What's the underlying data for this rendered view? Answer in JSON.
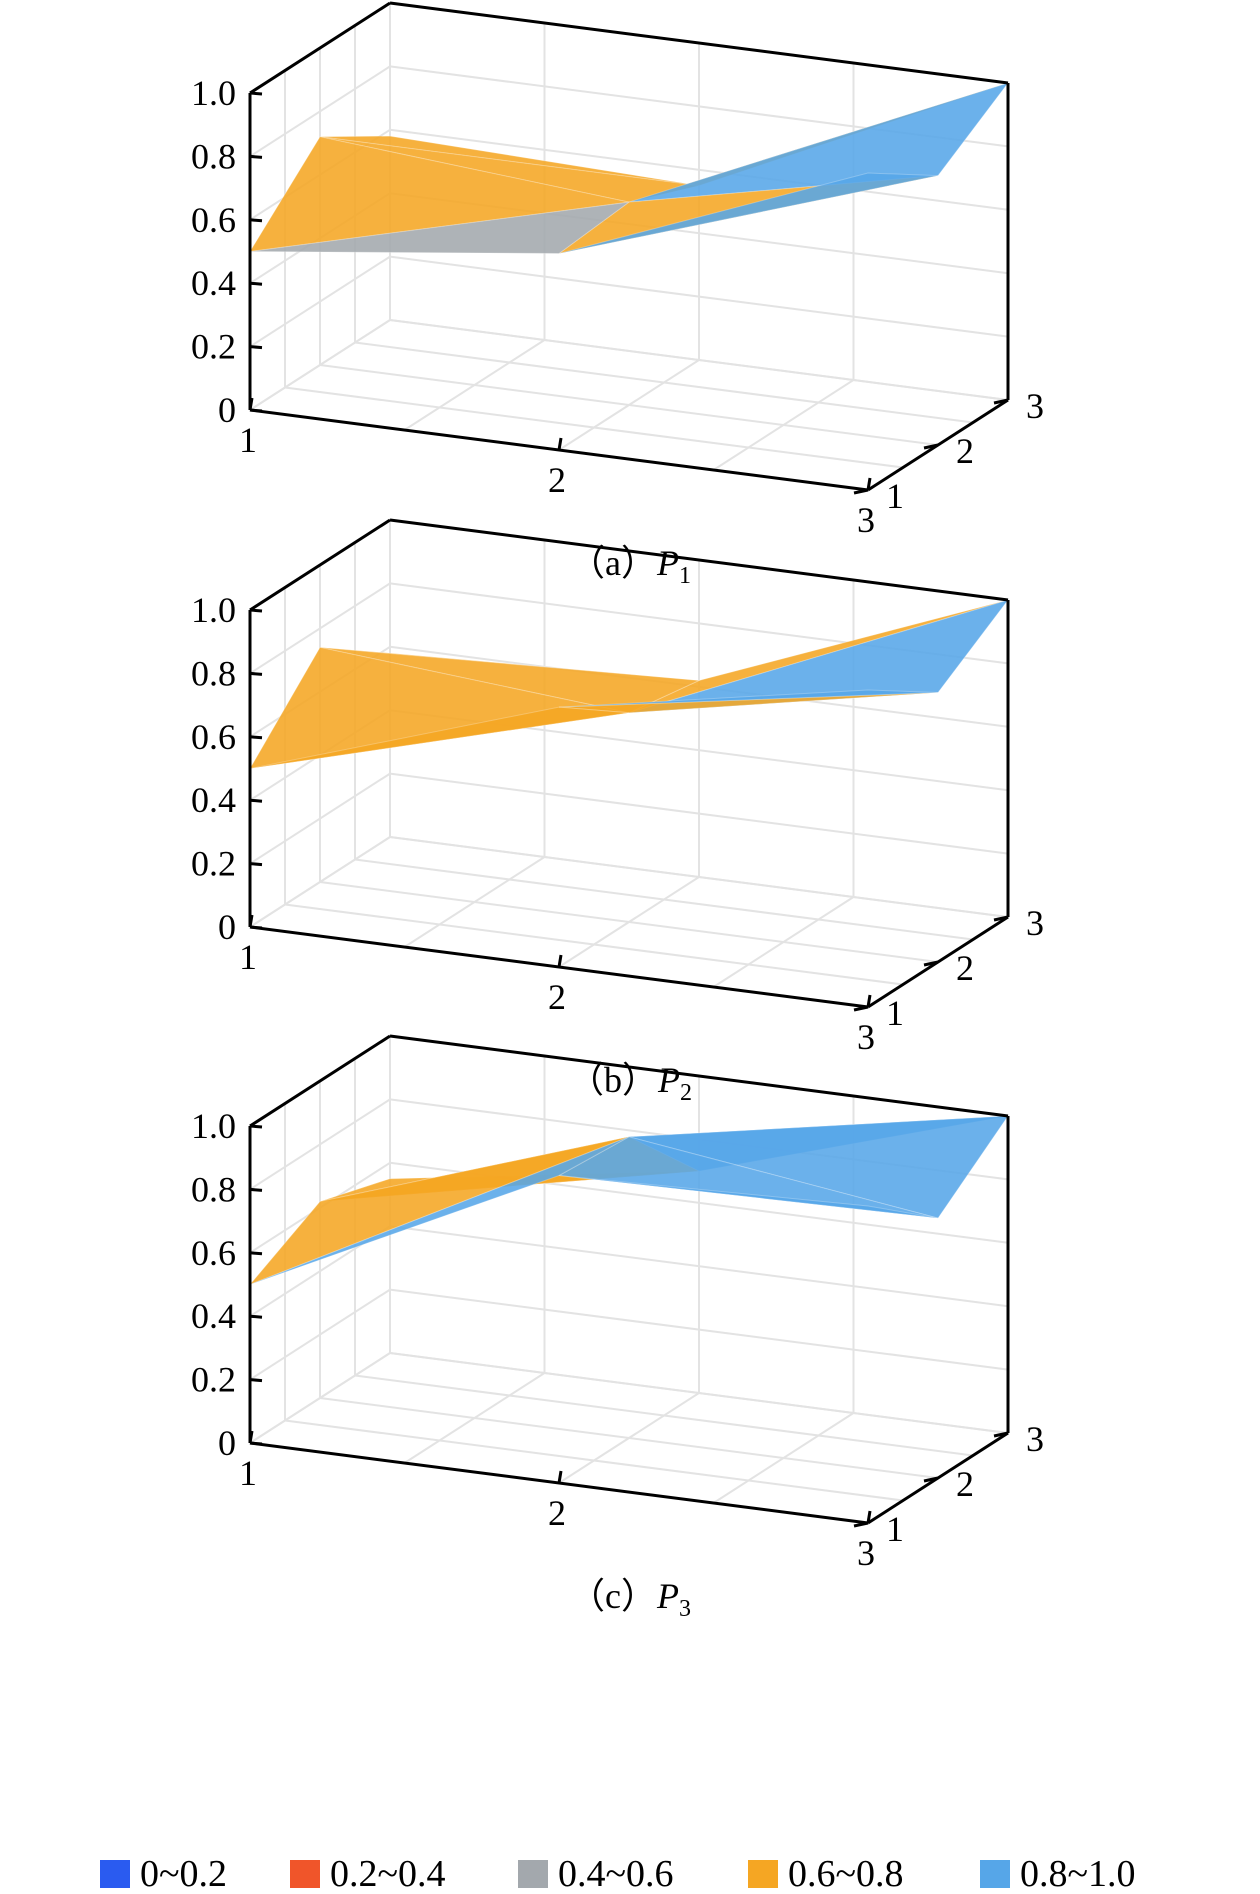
{
  "chart_data": [
    {
      "type": "surface3d",
      "caption": {
        "prefix": "（a）",
        "var": "P",
        "sub": "1"
      },
      "z_ticks": [
        "0",
        "0.2",
        "0.4",
        "0.6",
        "0.8",
        "1.0"
      ],
      "x_ticks": [
        "1",
        "2",
        "3"
      ],
      "y_ticks": [
        "1",
        "2",
        "3"
      ],
      "zlim": [
        0,
        1
      ],
      "z": [
        [
          0.5,
          0.62,
          1.0
        ],
        [
          0.72,
          0.64,
          0.85
        ],
        [
          0.58,
          0.55,
          1.0
        ]
      ]
    },
    {
      "type": "surface3d",
      "caption": {
        "prefix": "（b）",
        "var": "P",
        "sub": "2"
      },
      "z_ticks": [
        "0",
        "0.2",
        "0.4",
        "0.6",
        "0.8",
        "1.0"
      ],
      "x_ticks": [
        "1",
        "2",
        "3"
      ],
      "y_ticks": [
        "1",
        "2",
        "3"
      ],
      "zlim": [
        0,
        1
      ],
      "z": [
        [
          0.5,
          0.82,
          1.0
        ],
        [
          0.74,
          0.66,
          0.85
        ],
        [
          0.58,
          0.62,
          1.0
        ]
      ]
    },
    {
      "type": "surface3d",
      "caption": {
        "prefix": "（c）",
        "var": "P",
        "sub": "3"
      },
      "z_ticks": [
        "0",
        "0.2",
        "0.4",
        "0.6",
        "0.8",
        "1.0"
      ],
      "x_ticks": [
        "1",
        "2",
        "3"
      ],
      "y_ticks": [
        "1",
        "2",
        "3"
      ],
      "zlim": [
        0,
        1
      ],
      "z": [
        [
          0.5,
          0.97,
          1.0
        ],
        [
          0.62,
          0.95,
          0.82
        ],
        [
          0.55,
          0.7,
          1.0
        ]
      ]
    }
  ],
  "legend": [
    {
      "label": "0~0.2",
      "color": "#2a5bf0"
    },
    {
      "label": "0.2~0.4",
      "color": "#f0552a"
    },
    {
      "label": "0.4~0.6",
      "color": "#a3a8ad"
    },
    {
      "label": "0.6~0.8",
      "color": "#f5a623"
    },
    {
      "label": "0.8~1.0",
      "color": "#56a6e8"
    }
  ]
}
